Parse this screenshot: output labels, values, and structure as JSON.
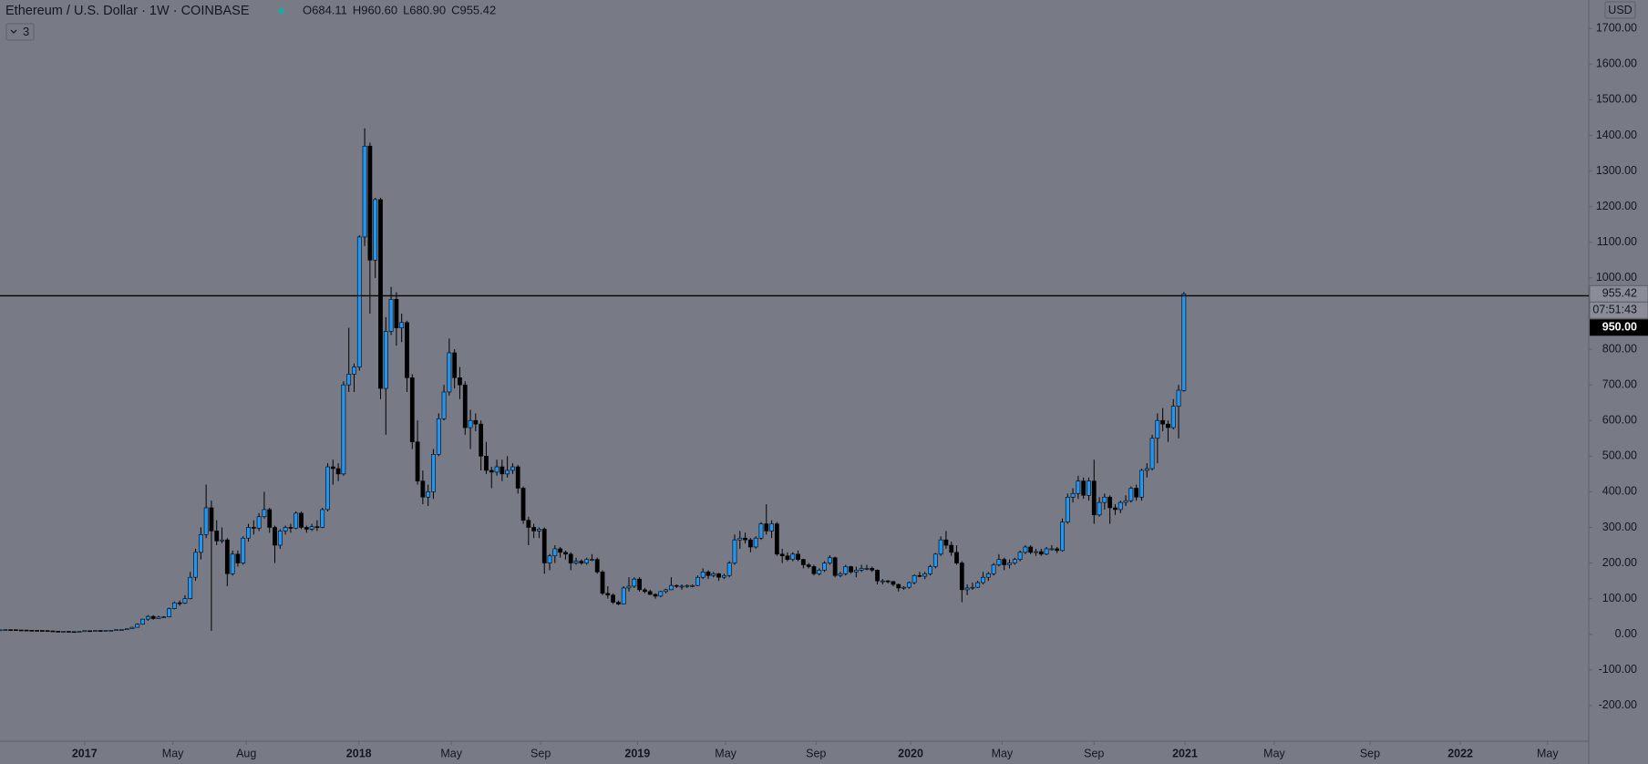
{
  "chart_data": {
    "type": "candlestick",
    "title": "Ethereum / U.S. Dollar · 1W · COINBASE",
    "ohlc_legend": [
      "O684.11",
      "H960.60",
      "L680.90",
      "C955.42"
    ],
    "indicators_count": "3",
    "currency": "USD",
    "up_color": "#2196f3",
    "down_color": "#000000",
    "grid": false,
    "last_price": {
      "value": 955.42,
      "label": "955.42"
    },
    "countdown": "07:51:43",
    "price_line": {
      "value": 950,
      "label": "950.00"
    },
    "xlim": [
      0,
      300.6
    ],
    "xticks": [
      {
        "value": 16,
        "label": "2017"
      },
      {
        "value": 32.7,
        "label": "May"
      },
      {
        "value": 46.6,
        "label": "Aug"
      },
      {
        "value": 67.9,
        "label": "2018"
      },
      {
        "value": 85.4,
        "label": "May"
      },
      {
        "value": 102.3,
        "label": "Sep"
      },
      {
        "value": 120.6,
        "label": "2019"
      },
      {
        "value": 137.3,
        "label": "May"
      },
      {
        "value": 154.4,
        "label": "Sep"
      },
      {
        "value": 172.3,
        "label": "2020"
      },
      {
        "value": 189.6,
        "label": "May"
      },
      {
        "value": 207,
        "label": "Sep"
      },
      {
        "value": 224.2,
        "label": "2021"
      },
      {
        "value": 241.1,
        "label": "May"
      },
      {
        "value": 259.2,
        "label": "Sep"
      },
      {
        "value": 276.3,
        "label": "2022"
      },
      {
        "value": 292.8,
        "label": "May"
      }
    ],
    "ylim": [
      -300,
      1780
    ],
    "yticks": [
      {
        "value": -200,
        "label": "-200.00"
      },
      {
        "value": -100,
        "label": "-100.00"
      },
      {
        "value": 0,
        "label": "0.00"
      },
      {
        "value": 100,
        "label": "100.00"
      },
      {
        "value": 200,
        "label": "200.00"
      },
      {
        "value": 300,
        "label": "300.00"
      },
      {
        "value": 400,
        "label": "400.00"
      },
      {
        "value": 500,
        "label": "500.00"
      },
      {
        "value": 600,
        "label": "600.00"
      },
      {
        "value": 700,
        "label": "700.00"
      },
      {
        "value": 800,
        "label": "800.00"
      },
      {
        "value": 900,
        "label": "900.00"
      },
      {
        "value": 1000,
        "label": "1000.00"
      },
      {
        "value": 1100,
        "label": "1100.00"
      },
      {
        "value": 1200,
        "label": "1200.00"
      },
      {
        "value": 1300,
        "label": "1300.00"
      },
      {
        "value": 1400,
        "label": "1400.00"
      },
      {
        "value": 1500,
        "label": "1500.00"
      },
      {
        "value": 1600,
        "label": "1600.00"
      },
      {
        "value": 1700,
        "label": "1700.00"
      }
    ],
    "ohlc": [
      [
        12.2,
        12.9,
        11.8,
        12.5
      ],
      [
        12.5,
        13.4,
        12.3,
        13.1
      ],
      [
        13.1,
        13.3,
        12.6,
        12.9
      ],
      [
        12.9,
        13,
        11.9,
        12.1
      ],
      [
        12.1,
        12.4,
        11.7,
        11.9
      ],
      [
        11.9,
        12.1,
        11,
        11.2
      ],
      [
        11.2,
        11.5,
        10.6,
        11
      ],
      [
        11,
        11.2,
        10.5,
        10.8
      ],
      [
        10.8,
        11.3,
        10.3,
        10.6
      ],
      [
        10.6,
        10.8,
        9.2,
        9.5
      ],
      [
        9.5,
        9.7,
        8.3,
        8.6
      ],
      [
        8.6,
        8.9,
        7.8,
        8.1
      ],
      [
        8.1,
        8.5,
        7.6,
        8.3
      ],
      [
        8.3,
        8.5,
        7.3,
        7.6
      ],
      [
        7.6,
        7.9,
        7.1,
        7.2
      ],
      [
        7.2,
        8.3,
        7,
        8
      ],
      [
        8,
        10.4,
        7.9,
        10.1
      ],
      [
        10.1,
        10.6,
        9.6,
        9.8
      ],
      [
        9.8,
        11,
        9.7,
        10.7
      ],
      [
        10.7,
        11.1,
        10.4,
        10.6
      ],
      [
        10.6,
        11.5,
        10.5,
        11.3
      ],
      [
        11.3,
        11.8,
        11,
        11.4
      ],
      [
        11.4,
        13.3,
        11.3,
        12.9
      ],
      [
        12.9,
        13.4,
        12.4,
        13.1
      ],
      [
        13.1,
        16,
        12.9,
        15.4
      ],
      [
        15.4,
        20.5,
        15.2,
        19.6
      ],
      [
        19.6,
        30.5,
        19,
        28.4
      ],
      [
        28.4,
        44,
        27,
        42.5
      ],
      [
        42.5,
        54,
        38,
        50.2
      ],
      [
        50.2,
        53.5,
        41,
        44.1
      ],
      [
        44.1,
        52,
        43,
        48.3
      ],
      [
        48.3,
        51,
        45,
        48.9
      ],
      [
        48.9,
        75,
        47.5,
        72.1
      ],
      [
        72.1,
        92,
        70,
        88.4
      ],
      [
        88.4,
        95,
        80,
        87.6
      ],
      [
        87.6,
        110,
        85,
        100
      ],
      [
        100,
        175,
        98,
        160
      ],
      [
        160,
        240,
        150,
        230
      ],
      [
        230,
        300,
        210,
        280
      ],
      [
        280,
        420,
        270,
        355
      ],
      [
        355,
        375,
        10,
        290
      ],
      [
        290,
        320,
        250,
        262
      ],
      [
        262,
        300,
        255,
        265
      ],
      [
        265,
        270,
        135,
        170
      ],
      [
        170,
        235,
        165,
        225
      ],
      [
        225,
        235,
        190,
        200
      ],
      [
        200,
        275,
        195,
        270
      ],
      [
        270,
        310,
        260,
        300
      ],
      [
        300,
        320,
        280,
        298
      ],
      [
        298,
        340,
        290,
        330
      ],
      [
        330,
        400,
        325,
        350
      ],
      [
        350,
        355,
        285,
        300
      ],
      [
        300,
        305,
        200,
        250
      ],
      [
        250,
        295,
        240,
        290
      ],
      [
        290,
        305,
        280,
        300
      ],
      [
        300,
        310,
        285,
        298
      ],
      [
        298,
        345,
        295,
        340
      ],
      [
        340,
        345,
        295,
        300
      ],
      [
        300,
        305,
        285,
        295
      ],
      [
        295,
        310,
        290,
        302
      ],
      [
        302,
        320,
        290,
        300
      ],
      [
        300,
        355,
        298,
        350
      ],
      [
        350,
        480,
        345,
        470
      ],
      [
        470,
        490,
        420,
        465
      ],
      [
        465,
        480,
        430,
        450
      ],
      [
        450,
        710,
        445,
        700
      ],
      [
        700,
        860,
        680,
        730
      ],
      [
        730,
        760,
        680,
        750
      ],
      [
        750,
        1120,
        740,
        1115
      ],
      [
        1115,
        1420,
        1090,
        1370
      ],
      [
        1370,
        1380,
        900,
        1050
      ],
      [
        1050,
        1225,
        1000,
        1220
      ],
      [
        1220,
        1225,
        660,
        690
      ],
      [
        690,
        890,
        560,
        850
      ],
      [
        850,
        975,
        840,
        940
      ],
      [
        940,
        960,
        810,
        860
      ],
      [
        860,
        900,
        820,
        875
      ],
      [
        875,
        880,
        680,
        720
      ],
      [
        720,
        730,
        520,
        540
      ],
      [
        540,
        600,
        420,
        430
      ],
      [
        430,
        460,
        365,
        385
      ],
      [
        385,
        420,
        360,
        400
      ],
      [
        400,
        520,
        380,
        505
      ],
      [
        505,
        620,
        500,
        605
      ],
      [
        605,
        700,
        600,
        680
      ],
      [
        680,
        830,
        670,
        790
      ],
      [
        790,
        800,
        690,
        720
      ],
      [
        720,
        750,
        660,
        700
      ],
      [
        700,
        710,
        560,
        580
      ],
      [
        580,
        630,
        520,
        600
      ],
      [
        600,
        620,
        570,
        590
      ],
      [
        590,
        600,
        460,
        500
      ],
      [
        500,
        540,
        450,
        460
      ],
      [
        460,
        470,
        410,
        455
      ],
      [
        455,
        490,
        445,
        470
      ],
      [
        470,
        490,
        430,
        450
      ],
      [
        450,
        500,
        440,
        460
      ],
      [
        460,
        480,
        450,
        470
      ],
      [
        470,
        475,
        395,
        410
      ],
      [
        410,
        415,
        310,
        320
      ],
      [
        320,
        330,
        250,
        300
      ],
      [
        300,
        310,
        270,
        290
      ],
      [
        290,
        300,
        270,
        295
      ],
      [
        295,
        300,
        170,
        200
      ],
      [
        200,
        225,
        180,
        220
      ],
      [
        220,
        250,
        200,
        240
      ],
      [
        240,
        245,
        215,
        230
      ],
      [
        230,
        235,
        210,
        225
      ],
      [
        225,
        230,
        180,
        200
      ],
      [
        200,
        215,
        195,
        205
      ],
      [
        205,
        210,
        195,
        200
      ],
      [
        200,
        215,
        195,
        210
      ],
      [
        210,
        225,
        205,
        210
      ],
      [
        210,
        215,
        170,
        175
      ],
      [
        175,
        180,
        110,
        115
      ],
      [
        115,
        135,
        100,
        110
      ],
      [
        110,
        115,
        85,
        90
      ],
      [
        90,
        95,
        82,
        85
      ],
      [
        85,
        135,
        84,
        130
      ],
      [
        130,
        160,
        120,
        135
      ],
      [
        135,
        160,
        130,
        155
      ],
      [
        155,
        160,
        120,
        125
      ],
      [
        125,
        130,
        115,
        120
      ],
      [
        120,
        125,
        110,
        112
      ],
      [
        112,
        115,
        100,
        107
      ],
      [
        107,
        122,
        104,
        120
      ],
      [
        120,
        128,
        115,
        125
      ],
      [
        125,
        160,
        124,
        137
      ],
      [
        137,
        140,
        130,
        135
      ],
      [
        135,
        140,
        125,
        135
      ],
      [
        135,
        140,
        130,
        137
      ],
      [
        137,
        140,
        132,
        137
      ],
      [
        137,
        165,
        135,
        160
      ],
      [
        160,
        185,
        155,
        175
      ],
      [
        175,
        180,
        155,
        165
      ],
      [
        165,
        175,
        160,
        170
      ],
      [
        170,
        172,
        150,
        160
      ],
      [
        160,
        170,
        155,
        165
      ],
      [
        165,
        205,
        160,
        200
      ],
      [
        200,
        280,
        195,
        265
      ],
      [
        265,
        290,
        240,
        270
      ],
      [
        270,
        285,
        255,
        265
      ],
      [
        265,
        270,
        230,
        245
      ],
      [
        245,
        275,
        240,
        270
      ],
      [
        270,
        315,
        265,
        310
      ],
      [
        310,
        365,
        280,
        290
      ],
      [
        290,
        320,
        270,
        310
      ],
      [
        310,
        315,
        220,
        225
      ],
      [
        225,
        240,
        200,
        220
      ],
      [
        220,
        230,
        205,
        210
      ],
      [
        210,
        230,
        205,
        225
      ],
      [
        225,
        235,
        205,
        210
      ],
      [
        210,
        212,
        185,
        195
      ],
      [
        195,
        200,
        185,
        190
      ],
      [
        190,
        195,
        165,
        170
      ],
      [
        170,
        185,
        165,
        180
      ],
      [
        180,
        205,
        175,
        200
      ],
      [
        200,
        222,
        195,
        215
      ],
      [
        215,
        218,
        160,
        165
      ],
      [
        165,
        175,
        160,
        170
      ],
      [
        170,
        195,
        165,
        190
      ],
      [
        190,
        192,
        170,
        175
      ],
      [
        175,
        190,
        160,
        180
      ],
      [
        180,
        195,
        175,
        185
      ],
      [
        185,
        195,
        180,
        185
      ],
      [
        185,
        190,
        175,
        180
      ],
      [
        180,
        182,
        140,
        150
      ],
      [
        150,
        155,
        140,
        150
      ],
      [
        150,
        152,
        143,
        148
      ],
      [
        148,
        150,
        135,
        140
      ],
      [
        140,
        142,
        120,
        130
      ],
      [
        130,
        135,
        125,
        132
      ],
      [
        132,
        148,
        128,
        145
      ],
      [
        145,
        168,
        140,
        165
      ],
      [
        165,
        175,
        160,
        163
      ],
      [
        163,
        175,
        155,
        170
      ],
      [
        170,
        195,
        165,
        190
      ],
      [
        190,
        228,
        185,
        225
      ],
      [
        225,
        275,
        220,
        265
      ],
      [
        265,
        290,
        240,
        250
      ],
      [
        250,
        260,
        220,
        230
      ],
      [
        230,
        250,
        195,
        200
      ],
      [
        200,
        205,
        90,
        125
      ],
      [
        125,
        140,
        110,
        130
      ],
      [
        130,
        145,
        125,
        132
      ],
      [
        132,
        150,
        130,
        145
      ],
      [
        145,
        175,
        140,
        160
      ],
      [
        160,
        175,
        150,
        170
      ],
      [
        170,
        200,
        165,
        195
      ],
      [
        195,
        225,
        190,
        210
      ],
      [
        210,
        215,
        180,
        195
      ],
      [
        195,
        210,
        185,
        200
      ],
      [
        200,
        215,
        195,
        210
      ],
      [
        210,
        235,
        205,
        230
      ],
      [
        230,
        250,
        225,
        245
      ],
      [
        245,
        250,
        225,
        230
      ],
      [
        230,
        240,
        220,
        232
      ],
      [
        232,
        240,
        220,
        225
      ],
      [
        225,
        245,
        222,
        240
      ],
      [
        240,
        250,
        235,
        240
      ],
      [
        240,
        245,
        228,
        235
      ],
      [
        235,
        325,
        232,
        315
      ],
      [
        315,
        395,
        310,
        385
      ],
      [
        385,
        410,
        370,
        395
      ],
      [
        395,
        445,
        380,
        430
      ],
      [
        430,
        440,
        380,
        390
      ],
      [
        390,
        440,
        375,
        430
      ],
      [
        430,
        490,
        310,
        335
      ],
      [
        335,
        385,
        330,
        370
      ],
      [
        370,
        395,
        350,
        385
      ],
      [
        385,
        390,
        310,
        355
      ],
      [
        355,
        365,
        335,
        350
      ],
      [
        350,
        375,
        340,
        370
      ],
      [
        370,
        390,
        360,
        375
      ],
      [
        375,
        415,
        370,
        410
      ],
      [
        410,
        420,
        375,
        385
      ],
      [
        385,
        465,
        375,
        460
      ],
      [
        460,
        480,
        440,
        465
      ],
      [
        465,
        560,
        460,
        550
      ],
      [
        550,
        620,
        480,
        600
      ],
      [
        600,
        635,
        570,
        590
      ],
      [
        590,
        600,
        540,
        580
      ],
      [
        580,
        660,
        575,
        640
      ],
      [
        640,
        700,
        550,
        685
      ],
      [
        684.11,
        960.6,
        680.9,
        955.42
      ]
    ]
  }
}
